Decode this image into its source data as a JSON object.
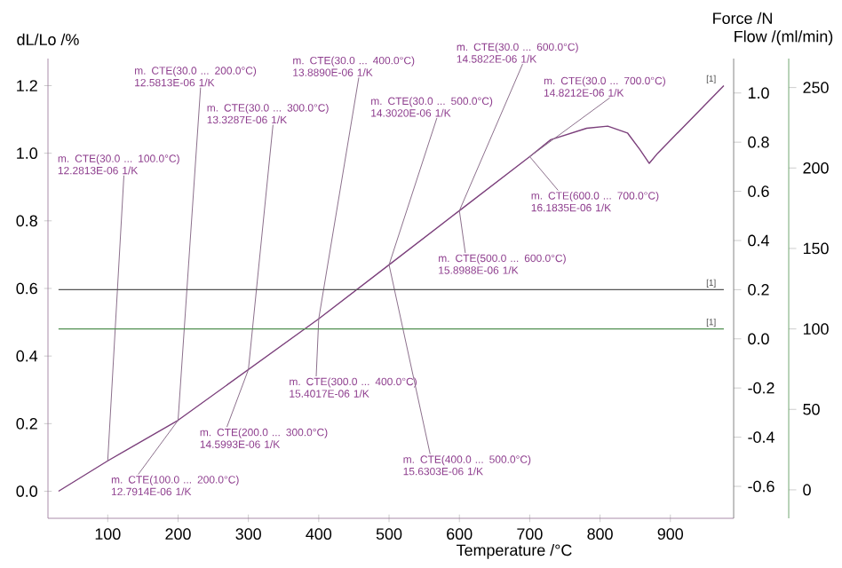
{
  "chart_data": {
    "type": "line",
    "xlabel": "Temperature /°C",
    "ylabel": "dL/Lo /%",
    "y2label": "Force /N",
    "y3label": "Flow /(ml/min)",
    "xlim": [
      15,
      990
    ],
    "xticks": [
      100,
      200,
      300,
      400,
      500,
      600,
      700,
      800,
      900
    ],
    "ylim": [
      -0.08,
      1.28
    ],
    "yticks": [
      {
        "value": 0,
        "label": "0.0"
      },
      0.2,
      0.4,
      0.6,
      0.8,
      {
        "value": 1,
        "label": "1.0"
      },
      1.2
    ],
    "y2lim": [
      -0.73,
      1.14
    ],
    "y2ticks": [
      -0.6,
      -0.4,
      -0.2,
      {
        "value": 0,
        "label": "0.0"
      },
      0.2,
      0.4,
      0.6,
      0.8,
      {
        "value": 1,
        "label": "1.0"
      }
    ],
    "y3lim": [
      -17.7,
      268
    ],
    "y3ticks": [
      0,
      50,
      100,
      150,
      200,
      250
    ],
    "marker": "none",
    "line_style": "solid",
    "grid": false,
    "series": [
      {
        "name": "[1]",
        "color": "#7b3f7b",
        "x": [
          30,
          100,
          200,
          300,
          400,
          500,
          600,
          700,
          730,
          781,
          811,
          839,
          857,
          870,
          882,
          976
        ],
        "values": [
          0,
          0.09,
          0.21,
          0.36,
          0.51,
          0.67,
          0.83,
          0.99,
          1.04,
          1.074,
          1.08,
          1.06,
          1.01,
          0.97,
          1.0,
          1.2
        ]
      },
      {
        "name": "[1]",
        "color": "#555555",
        "axis": "y2",
        "x": [
          30,
          976
        ],
        "values": [
          0.2,
          0.2
        ]
      },
      {
        "name": "[1]",
        "color": "#4f8f4f",
        "axis": "y3",
        "x": [
          30,
          976
        ],
        "values": [
          100,
          100
        ]
      }
    ],
    "annotations": [
      {
        "text": "m. CTE(30.0 ... 100.0°C) 12.2813E-06 1/K",
        "x": 100,
        "y": 0.09
      },
      {
        "text": "m. CTE(30.0 ... 200.0°C) 12.5813E-06 1/K",
        "x": 200,
        "y": 0.21
      },
      {
        "text": "m. CTE(30.0 ... 300.0°C) 13.3287E-06 1/K",
        "x": 300,
        "y": 0.36
      },
      {
        "text": "m. CTE(30.0 ... 400.0°C) 13.8890E-06 1/K",
        "x": 400,
        "y": 0.51
      },
      {
        "text": "m. CTE(30.0 ... 500.0°C) 14.3020E-06 1/K",
        "x": 500,
        "y": 0.67
      },
      {
        "text": "m. CTE(30.0 ... 600.0°C) 14.5822E-06 1/K",
        "x": 600,
        "y": 0.83
      },
      {
        "text": "m. CTE(30.0 ... 700.0°C) 14.8212E-06 1/K",
        "x": 700,
        "y": 0.99
      },
      {
        "text": "m. CTE(100.0 ... 200.0°C) 12.7914E-06 1/K",
        "x": 200,
        "y": 0.21
      },
      {
        "text": "m. CTE(200.0 ... 300.0°C) 14.5993E-06 1/K",
        "x": 300,
        "y": 0.36
      },
      {
        "text": "m. CTE(300.0 ... 400.0°C) 15.4017E-06 1/K",
        "x": 400,
        "y": 0.51
      },
      {
        "text": "m. CTE(400.0 ... 500.0°C) 15.6303E-06 1/K",
        "x": 500,
        "y": 0.67
      },
      {
        "text": "m. CTE(500.0 ... 600.0°C) 15.8988E-06 1/K",
        "x": 600,
        "y": 0.83
      },
      {
        "text": "m. CTE(600.0 ... 700.0°C) 16.1835E-06 1/K",
        "x": 700,
        "y": 0.99
      }
    ]
  }
}
